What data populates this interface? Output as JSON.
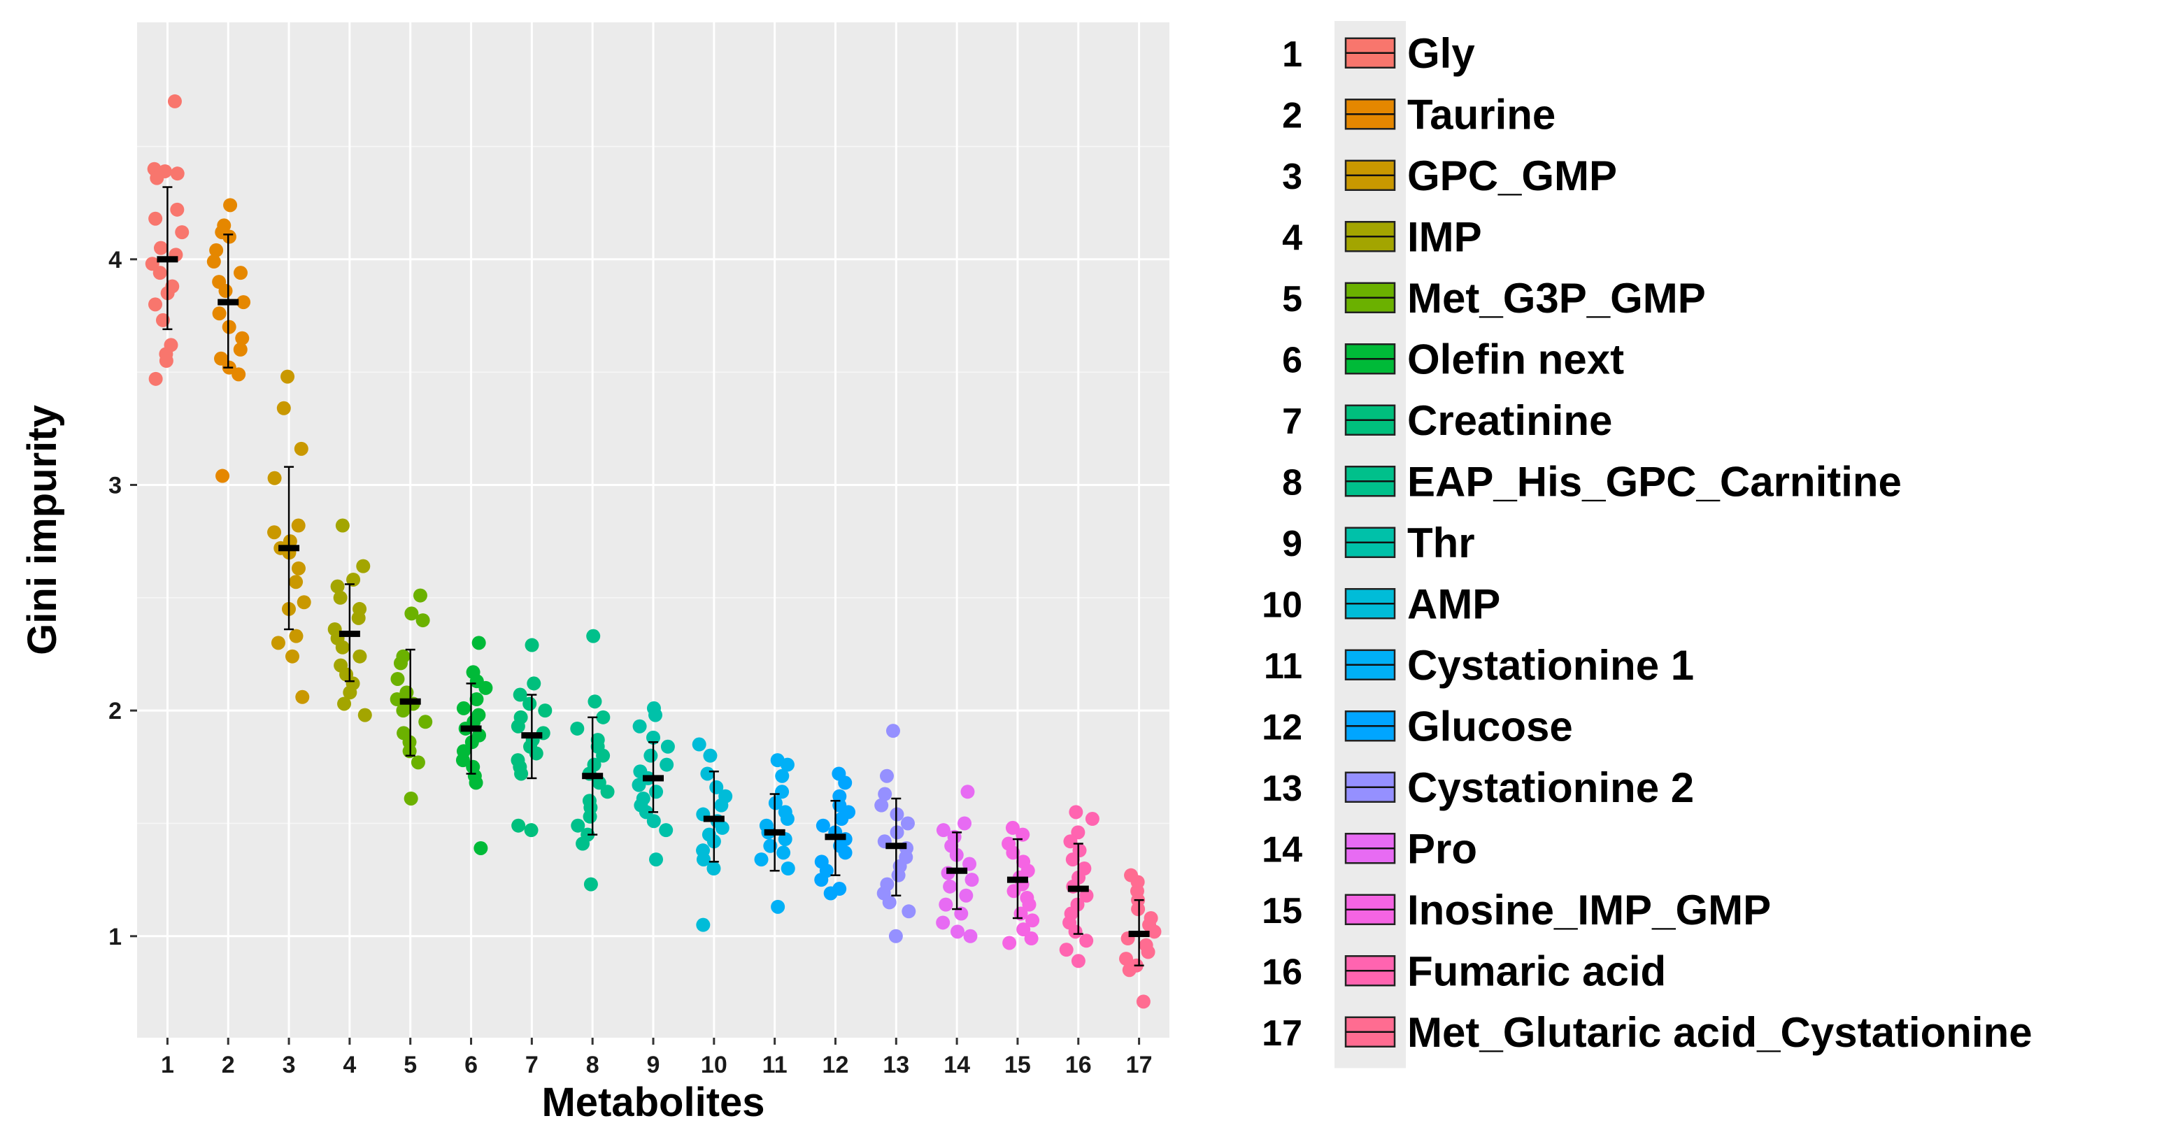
{
  "chart_data": {
    "type": "scatter",
    "subtype": "jittered-dot-plot-with-mean-and-sd",
    "xlabel": "Metabolites",
    "ylabel": "Gini impurity",
    "ylim": [
      0.55,
      5.05
    ],
    "yticks": [
      1,
      2,
      3,
      4
    ],
    "grid": true,
    "legend_position": "right",
    "categories": [
      "1",
      "2",
      "3",
      "4",
      "5",
      "6",
      "7",
      "8",
      "9",
      "10",
      "11",
      "12",
      "13",
      "14",
      "15",
      "16",
      "17"
    ],
    "series": [
      {
        "id": "1",
        "name": "Gly",
        "color": "#F8766D",
        "mean": 4.0,
        "sd_low": 3.69,
        "sd_high": 4.32,
        "points": [
          4.7,
          4.4,
          4.39,
          4.38,
          4.36,
          4.22,
          4.18,
          4.12,
          4.05,
          4.02,
          3.98,
          3.94,
          3.88,
          3.85,
          3.8,
          3.73,
          3.62,
          3.58,
          3.55,
          3.47
        ]
      },
      {
        "id": "2",
        "name": "Taurine",
        "color": "#E58700",
        "mean": 3.81,
        "sd_low": 3.52,
        "sd_high": 4.11,
        "points": [
          4.24,
          4.15,
          4.12,
          4.1,
          4.04,
          3.99,
          3.94,
          3.9,
          3.86,
          3.81,
          3.76,
          3.7,
          3.65,
          3.6,
          3.56,
          3.52,
          3.49,
          3.04
        ]
      },
      {
        "id": "3",
        "name": "GPC_GMP",
        "color": "#C99800",
        "mean": 2.72,
        "sd_low": 2.36,
        "sd_high": 3.08,
        "points": [
          3.48,
          3.34,
          3.16,
          3.03,
          2.82,
          2.79,
          2.75,
          2.72,
          2.7,
          2.63,
          2.57,
          2.48,
          2.45,
          2.33,
          2.3,
          2.24,
          2.06
        ]
      },
      {
        "id": "4",
        "name": "IMP",
        "color": "#A3A500",
        "mean": 2.34,
        "sd_low": 2.13,
        "sd_high": 2.56,
        "points": [
          2.82,
          2.64,
          2.58,
          2.55,
          2.5,
          2.45,
          2.41,
          2.36,
          2.32,
          2.28,
          2.24,
          2.2,
          2.16,
          2.12,
          2.08,
          2.03,
          1.98
        ]
      },
      {
        "id": "5",
        "name": "Met_G3P_GMP",
        "color": "#6BB100",
        "mean": 2.04,
        "sd_low": 1.8,
        "sd_high": 2.27,
        "points": [
          2.51,
          2.43,
          2.4,
          2.24,
          2.21,
          2.14,
          2.08,
          2.05,
          2.03,
          2.0,
          1.95,
          1.9,
          1.86,
          1.82,
          1.77,
          1.61
        ]
      },
      {
        "id": "6",
        "name": "Olefin next",
        "color": "#00BA38",
        "mean": 1.92,
        "sd_low": 1.72,
        "sd_high": 2.12,
        "points": [
          2.3,
          2.17,
          2.13,
          2.1,
          2.05,
          2.01,
          1.98,
          1.95,
          1.92,
          1.89,
          1.86,
          1.82,
          1.78,
          1.75,
          1.71,
          1.68,
          1.39
        ]
      },
      {
        "id": "7",
        "name": "Creatinine",
        "color": "#00BF7D",
        "mean": 1.89,
        "sd_low": 1.7,
        "sd_high": 2.07,
        "points": [
          2.29,
          2.12,
          2.07,
          2.03,
          2.0,
          1.97,
          1.93,
          1.9,
          1.87,
          1.84,
          1.81,
          1.78,
          1.75,
          1.72,
          1.49,
          1.47
        ]
      },
      {
        "id": "8",
        "name": "EAP_His_GPC_Carnitine",
        "color": "#00C08B",
        "mean": 1.71,
        "sd_low": 1.45,
        "sd_high": 1.97,
        "points": [
          2.33,
          2.04,
          1.97,
          1.92,
          1.87,
          1.84,
          1.8,
          1.76,
          1.72,
          1.68,
          1.64,
          1.6,
          1.57,
          1.53,
          1.49,
          1.45,
          1.41,
          1.23
        ]
      },
      {
        "id": "9",
        "name": "Thr",
        "color": "#00C1A9",
        "mean": 1.7,
        "sd_low": 1.55,
        "sd_high": 1.86,
        "points": [
          2.01,
          1.98,
          1.93,
          1.88,
          1.84,
          1.8,
          1.76,
          1.73,
          1.7,
          1.67,
          1.64,
          1.61,
          1.58,
          1.55,
          1.51,
          1.47,
          1.34
        ]
      },
      {
        "id": "10",
        "name": "AMP",
        "color": "#00BCD8",
        "mean": 1.52,
        "sd_low": 1.33,
        "sd_high": 1.73,
        "points": [
          1.85,
          1.8,
          1.72,
          1.66,
          1.62,
          1.58,
          1.54,
          1.51,
          1.48,
          1.45,
          1.42,
          1.38,
          1.34,
          1.3,
          1.05
        ]
      },
      {
        "id": "11",
        "name": "Cystationine 1",
        "color": "#00B0F6",
        "mean": 1.46,
        "sd_low": 1.29,
        "sd_high": 1.63,
        "points": [
          1.78,
          1.76,
          1.71,
          1.64,
          1.59,
          1.55,
          1.52,
          1.49,
          1.46,
          1.43,
          1.4,
          1.37,
          1.34,
          1.3,
          1.13
        ]
      },
      {
        "id": "12",
        "name": "Glucose",
        "color": "#00A5FF",
        "mean": 1.44,
        "sd_low": 1.27,
        "sd_high": 1.6,
        "points": [
          1.72,
          1.68,
          1.62,
          1.58,
          1.55,
          1.52,
          1.49,
          1.46,
          1.43,
          1.4,
          1.37,
          1.33,
          1.29,
          1.25,
          1.21,
          1.19
        ]
      },
      {
        "id": "13",
        "name": "Cystationine 2",
        "color": "#9590FF",
        "mean": 1.4,
        "sd_low": 1.18,
        "sd_high": 1.61,
        "points": [
          1.91,
          1.71,
          1.63,
          1.58,
          1.54,
          1.5,
          1.46,
          1.42,
          1.39,
          1.35,
          1.31,
          1.27,
          1.23,
          1.19,
          1.15,
          1.11,
          1.0
        ]
      },
      {
        "id": "14",
        "name": "Pro",
        "color": "#E76BF3",
        "mean": 1.29,
        "sd_low": 1.12,
        "sd_high": 1.46,
        "points": [
          1.64,
          1.5,
          1.47,
          1.44,
          1.4,
          1.36,
          1.32,
          1.28,
          1.25,
          1.22,
          1.18,
          1.14,
          1.1,
          1.06,
          1.02,
          1.0
        ]
      },
      {
        "id": "15",
        "name": "Inosine_IMP_GMP",
        "color": "#F564E3",
        "mean": 1.25,
        "sd_low": 1.08,
        "sd_high": 1.43,
        "points": [
          1.48,
          1.45,
          1.41,
          1.37,
          1.33,
          1.29,
          1.26,
          1.23,
          1.2,
          1.17,
          1.14,
          1.1,
          1.07,
          1.03,
          0.99,
          0.97
        ]
      },
      {
        "id": "16",
        "name": "Fumaric acid",
        "color": "#FF64B0",
        "mean": 1.21,
        "sd_low": 1.01,
        "sd_high": 1.41,
        "points": [
          1.55,
          1.52,
          1.46,
          1.42,
          1.38,
          1.34,
          1.3,
          1.26,
          1.22,
          1.18,
          1.14,
          1.1,
          1.06,
          1.02,
          0.98,
          0.94,
          0.89
        ]
      },
      {
        "id": "17",
        "name": "Met_Glutaric acid_Cystationine",
        "color": "#FF6C91",
        "mean": 1.01,
        "sd_low": 0.87,
        "sd_high": 1.16,
        "points": [
          1.27,
          1.24,
          1.2,
          1.16,
          1.12,
          1.08,
          1.05,
          1.02,
          0.99,
          0.96,
          0.93,
          0.9,
          0.87,
          0.85,
          0.71
        ]
      }
    ]
  }
}
